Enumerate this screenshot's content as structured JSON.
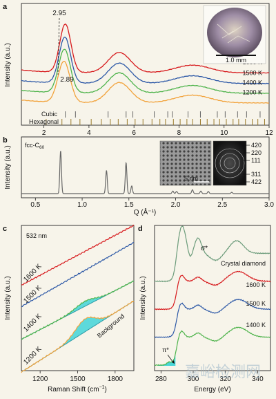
{
  "colors": {
    "bg": "#f7f4ea",
    "frame": "#222222",
    "red": "#d7191c",
    "blue": "#2b57a6",
    "green": "#4db34a",
    "orange": "#f2a23a",
    "gold": "#9a7a2a",
    "cyan": "#29d0d5",
    "teal": "#2f9aa5",
    "diamond": "#6b9b7a"
  },
  "watermark": "嘉峪检测网",
  "chart_data": [
    {
      "panel": "a",
      "type": "line",
      "ylabel": "Intensity (a.u.)",
      "xlim": [
        1,
        12
      ],
      "x_ticks": [
        2,
        4,
        6,
        8,
        10,
        12
      ],
      "annotations": [
        "2.95",
        "2.89"
      ],
      "inset_scale": "1.0 mm",
      "series": [
        {
          "name": "1600 K",
          "color": "#d7191c",
          "baseline": 0.78,
          "peaks": [
            [
              2.95,
              1.0,
              0.35
            ],
            [
              5.35,
              0.42,
              0.7
            ],
            [
              8.6,
              0.16,
              1.1
            ]
          ]
        },
        {
          "name": "1500 K",
          "color": "#2b57a6",
          "baseline": 0.56,
          "peaks": [
            [
              2.93,
              0.95,
              0.36
            ],
            [
              5.35,
              0.42,
              0.7
            ],
            [
              8.6,
              0.16,
              1.1
            ]
          ]
        },
        {
          "name": "1400 K",
          "color": "#4db34a",
          "baseline": 0.36,
          "peaks": [
            [
              2.91,
              0.9,
              0.37
            ],
            [
              5.35,
              0.42,
              0.7
            ],
            [
              8.6,
              0.16,
              1.1
            ]
          ]
        },
        {
          "name": "1200 K",
          "color": "#f2a23a",
          "baseline": 0.16,
          "peaks": [
            [
              2.89,
              0.85,
              0.38
            ],
            [
              5.35,
              0.42,
              0.7
            ],
            [
              8.6,
              0.16,
              1.1
            ]
          ]
        }
      ],
      "reference_labels": [
        "Cubic",
        "Hexagonal"
      ],
      "cubic_ticks": [
        2.95,
        3.4,
        4.85,
        5.65,
        5.95,
        6.9,
        7.5,
        7.7,
        8.4,
        8.95,
        9.7,
        10.05,
        10.6,
        11.0,
        11.6
      ],
      "hexagonal_ticks": [
        2.1,
        2.8,
        3.2,
        3.6,
        4.1,
        4.55,
        4.95,
        5.3,
        5.7,
        6.05,
        6.4,
        6.8,
        7.15,
        7.4,
        7.75,
        8.05,
        8.35,
        8.6,
        8.95,
        9.25,
        9.55,
        9.8,
        10.1,
        10.4,
        10.65,
        10.95,
        11.25,
        11.5,
        11.8
      ]
    },
    {
      "panel": "b",
      "type": "line",
      "title": "fcc-C60",
      "title_main": "fcc-C",
      "title_sub": "60",
      "ylabel": "Intensity (a.u.)",
      "xlabel": "Q (Å⁻¹)",
      "xlim": [
        0.35,
        3.0
      ],
      "x_ticks": [
        "0.5",
        "1.0",
        "1.5",
        "2.0",
        "2.5",
        "3.0"
      ],
      "peaks": [
        [
          0.77,
          1.0
        ],
        [
          1.26,
          0.54
        ],
        [
          1.47,
          0.72
        ],
        [
          1.53,
          0.18
        ],
        [
          1.97,
          0.06
        ],
        [
          2.01,
          0.05
        ],
        [
          2.18,
          0.09
        ],
        [
          2.27,
          0.06
        ],
        [
          2.35,
          0.05
        ],
        [
          2.6,
          0.03
        ]
      ],
      "inset_scale": "5 nm",
      "diffraction_labels": [
        "420",
        "220",
        "111",
        "311",
        "422"
      ]
    },
    {
      "panel": "c",
      "type": "line",
      "title": "532 nm",
      "ylabel": "Intensity (a.u.)",
      "xlabel": "Raman Shift (cm⁻¹)",
      "xlim": [
        1050,
        1950
      ],
      "x_ticks": [
        1200,
        1500,
        1800
      ],
      "series": [
        {
          "name": "1600 K",
          "color": "#d7191c",
          "y0": 0.6,
          "y1": 1.02
        },
        {
          "name": "1500 K",
          "color": "#2b57a6",
          "y0": 0.45,
          "y1": 0.9
        },
        {
          "name": "1400 K",
          "color": "#4db34a",
          "y0": 0.25,
          "y1": 0.66
        },
        {
          "name": "1200 K",
          "color": "#f2a23a",
          "y0": 0.02,
          "y1": 0.52
        }
      ],
      "fill_label": "Background"
    },
    {
      "panel": "d",
      "type": "line",
      "ylabel": "Intensity (a.u.)",
      "xlabel": "Energy (eV)",
      "xlim": [
        276,
        348
      ],
      "x_ticks": [
        280,
        300,
        320,
        340
      ],
      "annotations": [
        "σ*",
        "π*"
      ],
      "series": [
        {
          "name": "Crystal diamond",
          "color": "#6b9b7a",
          "offset": 0.62
        },
        {
          "name": "1600 K",
          "color": "#d7191c",
          "offset": 0.42
        },
        {
          "name": "1500 K",
          "color": "#2b57a6",
          "offset": 0.22
        },
        {
          "name": "1400 K",
          "color": "#4db34a",
          "offset": 0.02
        }
      ]
    }
  ]
}
